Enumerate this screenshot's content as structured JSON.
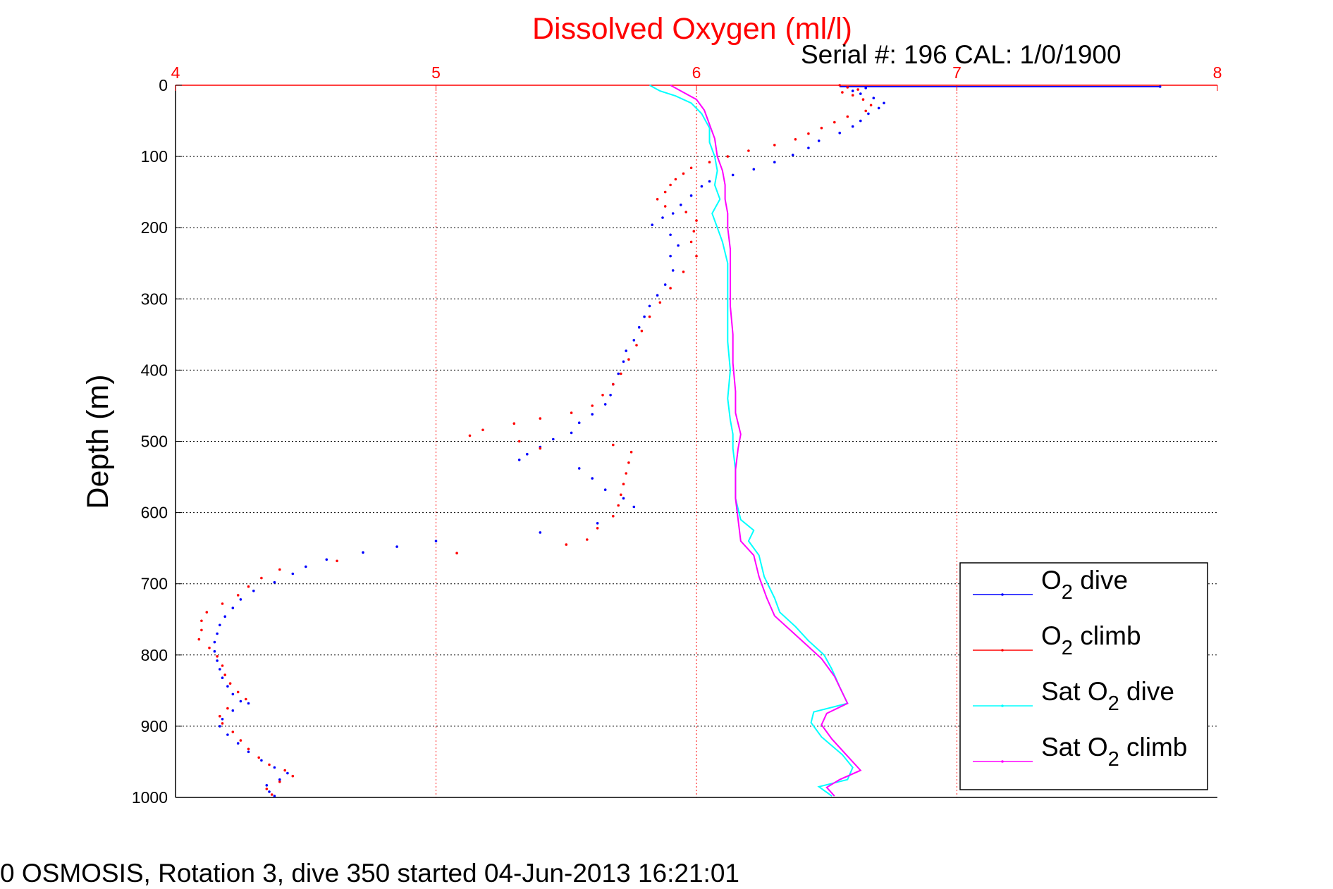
{
  "chart_data": {
    "type": "scatter",
    "title": "Dissolved Oxygen (ml/l)",
    "subtitle": "Serial #: 196  CAL: 1/0/1900",
    "footer": "0 OSMOSIS, Rotation 3, dive 350 started 04-Jun-2013 16:21:01",
    "xlabel": "",
    "ylabel": "Depth (m)",
    "xlim": [
      4,
      8
    ],
    "ylim": [
      0,
      1000
    ],
    "y_reversed": true,
    "x_axis_position": "top",
    "xticks": [
      "4",
      "5",
      "6",
      "7",
      "8"
    ],
    "yticks": [
      "0",
      "100",
      "200",
      "300",
      "400",
      "500",
      "600",
      "700",
      "800",
      "900",
      "1000"
    ],
    "grid": true,
    "legend_position": "lower-right",
    "colors": {
      "title": "#ff0000",
      "x_ticks": "#ff0000",
      "axis_top": "#ff0000",
      "grid_x": "#ff0000",
      "grid_y": "#000000"
    },
    "series": [
      {
        "name": "O2 dive",
        "legend_main": "O",
        "legend_sub": "2",
        "legend_rest": " dive",
        "color": "#0000ff",
        "style": "dots",
        "points": [
          [
            7.78,
            2
          ],
          [
            6.65,
            4
          ],
          [
            6.6,
            8
          ],
          [
            6.63,
            12
          ],
          [
            6.68,
            18
          ],
          [
            6.72,
            25
          ],
          [
            6.7,
            32
          ],
          [
            6.66,
            40
          ],
          [
            6.63,
            50
          ],
          [
            6.6,
            58
          ],
          [
            6.55,
            67
          ],
          [
            6.47,
            78
          ],
          [
            6.43,
            88
          ],
          [
            6.37,
            98
          ],
          [
            6.3,
            108
          ],
          [
            6.22,
            118
          ],
          [
            6.14,
            126
          ],
          [
            6.05,
            135
          ],
          [
            6.02,
            142
          ],
          [
            5.98,
            155
          ],
          [
            5.94,
            168
          ],
          [
            5.91,
            180
          ],
          [
            5.87,
            186
          ],
          [
            5.83,
            196
          ],
          [
            5.9,
            210
          ],
          [
            5.93,
            225
          ],
          [
            5.9,
            240
          ],
          [
            5.91,
            260
          ],
          [
            5.88,
            280
          ],
          [
            5.85,
            295
          ],
          [
            5.82,
            310
          ],
          [
            5.8,
            325
          ],
          [
            5.78,
            340
          ],
          [
            5.76,
            358
          ],
          [
            5.73,
            373
          ],
          [
            5.72,
            388
          ],
          [
            5.7,
            405
          ],
          [
            5.68,
            420
          ],
          [
            5.67,
            435
          ],
          [
            5.65,
            448
          ],
          [
            5.6,
            462
          ],
          [
            5.55,
            474
          ],
          [
            5.52,
            488
          ],
          [
            5.45,
            497
          ],
          [
            5.4,
            508
          ],
          [
            5.35,
            518
          ],
          [
            5.32,
            526
          ],
          [
            5.55,
            538
          ],
          [
            5.6,
            552
          ],
          [
            5.65,
            568
          ],
          [
            5.72,
            580
          ],
          [
            5.76,
            592
          ],
          [
            5.62,
            615
          ],
          [
            5.4,
            628
          ],
          [
            5.0,
            640
          ],
          [
            4.85,
            648
          ],
          [
            4.72,
            656
          ],
          [
            4.58,
            666
          ],
          [
            4.5,
            676
          ],
          [
            4.45,
            686
          ],
          [
            4.38,
            698
          ],
          [
            4.3,
            710
          ],
          [
            4.25,
            722
          ],
          [
            4.22,
            734
          ],
          [
            4.19,
            746
          ],
          [
            4.17,
            758
          ],
          [
            4.16,
            770
          ],
          [
            4.15,
            782
          ],
          [
            4.15,
            795
          ],
          [
            4.16,
            808
          ],
          [
            4.17,
            820
          ],
          [
            4.18,
            832
          ],
          [
            4.2,
            844
          ],
          [
            4.22,
            855
          ],
          [
            4.25,
            865
          ],
          [
            4.28,
            868
          ],
          [
            4.22,
            878
          ],
          [
            4.18,
            890
          ],
          [
            4.17,
            900
          ],
          [
            4.2,
            912
          ],
          [
            4.24,
            924
          ],
          [
            4.28,
            936
          ],
          [
            4.33,
            948
          ],
          [
            4.38,
            958
          ],
          [
            4.43,
            966
          ],
          [
            4.4,
            975
          ],
          [
            4.35,
            983
          ],
          [
            4.36,
            992
          ],
          [
            4.38,
            998
          ]
        ],
        "line_points": [
          [
            6.55,
            2
          ],
          [
            7.78,
            2
          ]
        ]
      },
      {
        "name": "O2 climb",
        "legend_main": "O",
        "legend_sub": "2",
        "legend_rest": " climb",
        "color": "#ff0000",
        "style": "dots",
        "points": [
          [
            6.55,
            0
          ],
          [
            6.58,
            3
          ],
          [
            6.62,
            6
          ],
          [
            6.56,
            10
          ],
          [
            6.6,
            14
          ],
          [
            6.64,
            20
          ],
          [
            6.67,
            28
          ],
          [
            6.65,
            36
          ],
          [
            6.58,
            44
          ],
          [
            6.53,
            52
          ],
          [
            6.48,
            60
          ],
          [
            6.43,
            68
          ],
          [
            6.38,
            76
          ],
          [
            6.3,
            84
          ],
          [
            6.2,
            92
          ],
          [
            6.12,
            100
          ],
          [
            6.05,
            108
          ],
          [
            5.98,
            116
          ],
          [
            5.95,
            124
          ],
          [
            5.92,
            132
          ],
          [
            5.9,
            140
          ],
          [
            5.88,
            150
          ],
          [
            5.85,
            160
          ],
          [
            5.88,
            170
          ],
          [
            5.96,
            178
          ],
          [
            6.0,
            190
          ],
          [
            5.99,
            205
          ],
          [
            5.98,
            220
          ],
          [
            6.0,
            240
          ],
          [
            5.95,
            262
          ],
          [
            5.9,
            285
          ],
          [
            5.86,
            305
          ],
          [
            5.82,
            325
          ],
          [
            5.79,
            345
          ],
          [
            5.77,
            365
          ],
          [
            5.74,
            385
          ],
          [
            5.71,
            405
          ],
          [
            5.68,
            420
          ],
          [
            5.64,
            435
          ],
          [
            5.6,
            450
          ],
          [
            5.52,
            460
          ],
          [
            5.4,
            468
          ],
          [
            5.3,
            475
          ],
          [
            5.18,
            484
          ],
          [
            5.13,
            492
          ],
          [
            5.32,
            500
          ],
          [
            5.4,
            510
          ],
          [
            5.68,
            505
          ],
          [
            5.75,
            515
          ],
          [
            5.74,
            530
          ],
          [
            5.73,
            545
          ],
          [
            5.72,
            560
          ],
          [
            5.71,
            575
          ],
          [
            5.7,
            590
          ],
          [
            5.68,
            605
          ],
          [
            5.62,
            622
          ],
          [
            5.58,
            638
          ],
          [
            5.5,
            645
          ],
          [
            5.08,
            657
          ],
          [
            4.62,
            668
          ],
          [
            4.4,
            680
          ],
          [
            4.33,
            692
          ],
          [
            4.28,
            704
          ],
          [
            4.24,
            716
          ],
          [
            4.18,
            728
          ],
          [
            4.12,
            740
          ],
          [
            4.1,
            752
          ],
          [
            4.1,
            765
          ],
          [
            4.09,
            778
          ],
          [
            4.13,
            790
          ],
          [
            4.16,
            802
          ],
          [
            4.18,
            815
          ],
          [
            4.19,
            828
          ],
          [
            4.21,
            840
          ],
          [
            4.24,
            852
          ],
          [
            4.27,
            862
          ],
          [
            4.2,
            875
          ],
          [
            4.17,
            886
          ],
          [
            4.18,
            896
          ],
          [
            4.22,
            908
          ],
          [
            4.25,
            920
          ],
          [
            4.28,
            932
          ],
          [
            4.32,
            944
          ],
          [
            4.36,
            954
          ],
          [
            4.42,
            962
          ],
          [
            4.45,
            970
          ],
          [
            4.4,
            978
          ],
          [
            4.35,
            988
          ],
          [
            4.37,
            996
          ]
        ]
      },
      {
        "name": "Sat O2 dive",
        "legend_main": "Sat O",
        "legend_sub": "2",
        "legend_rest": " dive",
        "color": "#00ffff",
        "style": "line",
        "points": [
          [
            5.82,
            0
          ],
          [
            5.86,
            8
          ],
          [
            5.92,
            15
          ],
          [
            5.98,
            25
          ],
          [
            6.02,
            40
          ],
          [
            6.05,
            60
          ],
          [
            6.05,
            80
          ],
          [
            6.07,
            100
          ],
          [
            6.08,
            120
          ],
          [
            6.07,
            140
          ],
          [
            6.09,
            160
          ],
          [
            6.06,
            180
          ],
          [
            6.08,
            200
          ],
          [
            6.1,
            220
          ],
          [
            6.12,
            250
          ],
          [
            6.12,
            280
          ],
          [
            6.12,
            320
          ],
          [
            6.12,
            360
          ],
          [
            6.13,
            400
          ],
          [
            6.12,
            440
          ],
          [
            6.13,
            470
          ],
          [
            6.14,
            490
          ],
          [
            6.14,
            510
          ],
          [
            6.15,
            540
          ],
          [
            6.15,
            580
          ],
          [
            6.17,
            610
          ],
          [
            6.22,
            625
          ],
          [
            6.2,
            640
          ],
          [
            6.24,
            660
          ],
          [
            6.26,
            690
          ],
          [
            6.3,
            720
          ],
          [
            6.32,
            740
          ],
          [
            6.38,
            760
          ],
          [
            6.43,
            780
          ],
          [
            6.49,
            800
          ],
          [
            6.52,
            820
          ],
          [
            6.55,
            845
          ],
          [
            6.58,
            868
          ],
          [
            6.45,
            880
          ],
          [
            6.44,
            895
          ],
          [
            6.48,
            915
          ],
          [
            6.56,
            940
          ],
          [
            6.6,
            958
          ],
          [
            6.58,
            975
          ],
          [
            6.47,
            985
          ],
          [
            6.52,
            998
          ]
        ]
      },
      {
        "name": "Sat O2 climb",
        "legend_main": "Sat O",
        "legend_sub": "2",
        "legend_rest": " climb",
        "color": "#ff00ff",
        "style": "line",
        "points": [
          [
            5.9,
            0
          ],
          [
            5.95,
            10
          ],
          [
            6.0,
            20
          ],
          [
            6.03,
            35
          ],
          [
            6.05,
            55
          ],
          [
            6.07,
            75
          ],
          [
            6.08,
            100
          ],
          [
            6.1,
            120
          ],
          [
            6.11,
            140
          ],
          [
            6.11,
            160
          ],
          [
            6.12,
            180
          ],
          [
            6.12,
            200
          ],
          [
            6.13,
            230
          ],
          [
            6.13,
            270
          ],
          [
            6.13,
            310
          ],
          [
            6.14,
            350
          ],
          [
            6.14,
            390
          ],
          [
            6.15,
            430
          ],
          [
            6.15,
            460
          ],
          [
            6.17,
            490
          ],
          [
            6.16,
            510
          ],
          [
            6.15,
            540
          ],
          [
            6.15,
            580
          ],
          [
            6.16,
            610
          ],
          [
            6.17,
            640
          ],
          [
            6.22,
            660
          ],
          [
            6.24,
            690
          ],
          [
            6.27,
            720
          ],
          [
            6.3,
            745
          ],
          [
            6.36,
            765
          ],
          [
            6.42,
            785
          ],
          [
            6.48,
            805
          ],
          [
            6.53,
            830
          ],
          [
            6.58,
            868
          ],
          [
            6.5,
            882
          ],
          [
            6.48,
            898
          ],
          [
            6.52,
            918
          ],
          [
            6.58,
            942
          ],
          [
            6.63,
            962
          ],
          [
            6.55,
            975
          ],
          [
            6.5,
            986
          ],
          [
            6.53,
            998
          ]
        ]
      }
    ]
  }
}
